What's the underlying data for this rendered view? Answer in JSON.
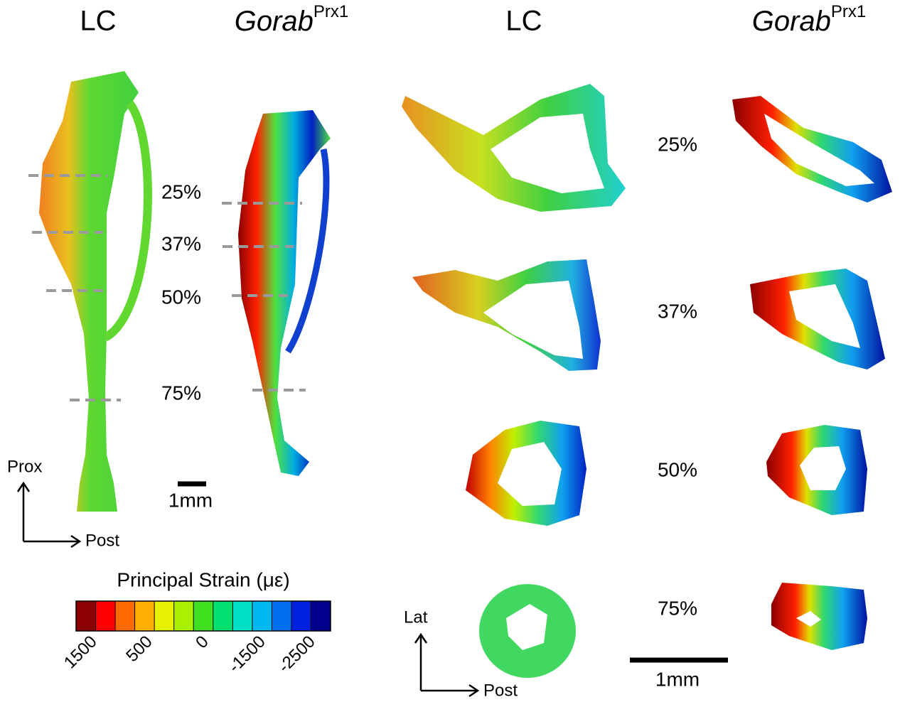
{
  "headings": [
    {
      "text": "LC"
    },
    {
      "text": "Gorab",
      "sup": "Prx1"
    },
    {
      "text": "LC"
    },
    {
      "text": "Gorab",
      "sup": "Prx1"
    }
  ],
  "bone_levels": [
    "25%",
    "37%",
    "50%",
    "75%"
  ],
  "section_levels": [
    "25%",
    "37%",
    "50%",
    "75%"
  ],
  "scale_bars": [
    "1mm",
    "1mm"
  ],
  "axes_bone": {
    "up": "Prox",
    "right": "Post"
  },
  "axes_section": {
    "up": "Lat",
    "right": "Post"
  },
  "colorbar": {
    "title": "Principal Strain (με)",
    "colors": [
      "#8b0000",
      "#ff0000",
      "#ff6a00",
      "#ffb000",
      "#e6f000",
      "#a8f000",
      "#40e020",
      "#00e070",
      "#00e0c8",
      "#00b8f0",
      "#0070f0",
      "#0020e0",
      "#00008b"
    ],
    "tick_labels": [
      "1500",
      "500",
      "0",
      "-1500",
      "-2500"
    ]
  }
}
